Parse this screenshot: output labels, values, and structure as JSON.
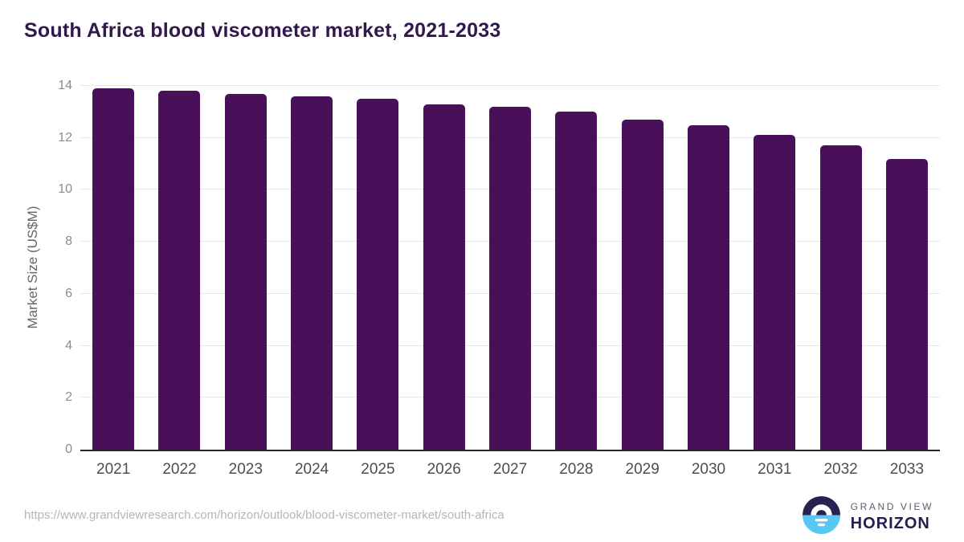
{
  "title": "South Africa blood viscometer market, 2021-2033",
  "chart_data": {
    "type": "bar",
    "title": "South Africa blood viscometer market, 2021-2033",
    "categories": [
      "2021",
      "2022",
      "2023",
      "2024",
      "2025",
      "2026",
      "2027",
      "2028",
      "2029",
      "2030",
      "2031",
      "2032",
      "2033"
    ],
    "values": [
      13.9,
      13.8,
      13.7,
      13.6,
      13.5,
      13.3,
      13.2,
      13.0,
      12.7,
      12.5,
      12.1,
      11.7,
      11.2
    ],
    "xlabel": "",
    "ylabel": "Market Size (US$M)",
    "ylim": [
      0,
      14
    ],
    "ytick_step": 2,
    "yticks": [
      0,
      2,
      4,
      6,
      8,
      10,
      12,
      14
    ],
    "grid": true,
    "legend": "none"
  },
  "colors": {
    "bar": "#481058",
    "title_text": "#32184d",
    "gridline": "#e8e8e8",
    "axis_line": "#262626",
    "logo_dark": "#2b2150",
    "logo_blue": "#59c7f3"
  },
  "footer": {
    "source_url": "https://www.grandviewresearch.com/horizon/outlook/blood-viscometer-market/south-africa",
    "brand_top": "GRAND VIEW",
    "brand_bottom": "HORIZON"
  }
}
